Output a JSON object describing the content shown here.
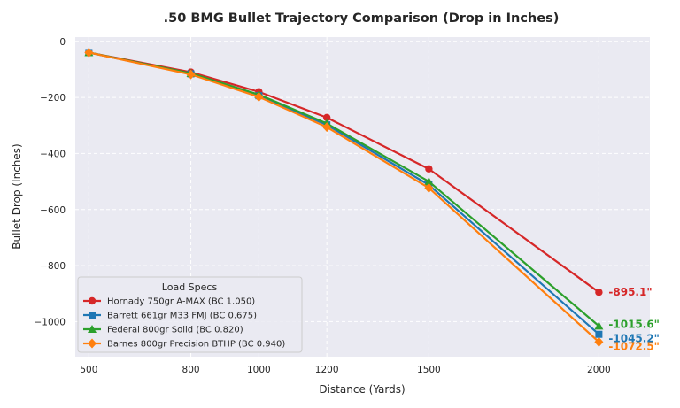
{
  "chart_data": {
    "type": "line",
    "title": ".50 BMG Bullet Trajectory Comparison (Drop in Inches)",
    "xlabel": "Distance (Yards)",
    "ylabel": "Bullet Drop (Inches)",
    "x": [
      500,
      800,
      1000,
      1200,
      1500,
      2000
    ],
    "x_ticks": [
      500,
      800,
      1000,
      1200,
      1500,
      2000
    ],
    "y_ticks": [
      0,
      -200,
      -400,
      -600,
      -800,
      -1000
    ],
    "y_tick_labels": [
      "0",
      "−200",
      "−400",
      "−600",
      "−800",
      "−1000"
    ],
    "xlim": [
      460,
      2150
    ],
    "ylim": [
      -1125,
      15
    ],
    "grid": true,
    "legend": {
      "title": "Load Specs",
      "position": "lower-left"
    },
    "series": [
      {
        "name": "Hornady 750gr A-MAX (BC 1.050)",
        "color": "#d62728",
        "marker": "circle",
        "values": [
          -40,
          -110,
          -180,
          -272,
          -455,
          -895.1
        ],
        "end_label": "-895.1\""
      },
      {
        "name": "Barrett 661gr M33 FMJ (BC 0.675)",
        "color": "#1f77b4",
        "marker": "square",
        "values": [
          -40,
          -116,
          -194,
          -298,
          -512,
          -1045.2
        ],
        "end_label": "-1045.2\""
      },
      {
        "name": "Federal 800gr Solid (BC 0.820)",
        "color": "#2ca02c",
        "marker": "triangle",
        "values": [
          -40,
          -114,
          -190,
          -293,
          -500,
          -1015.6
        ],
        "end_label": "-1015.6\""
      },
      {
        "name": "Barnes 800gr Precision BTHP (BC 0.940)",
        "color": "#ff7f0e",
        "marker": "diamond",
        "values": [
          -40,
          -118,
          -198,
          -306,
          -523,
          -1072.5
        ],
        "end_label": "-1072.5\""
      }
    ]
  }
}
